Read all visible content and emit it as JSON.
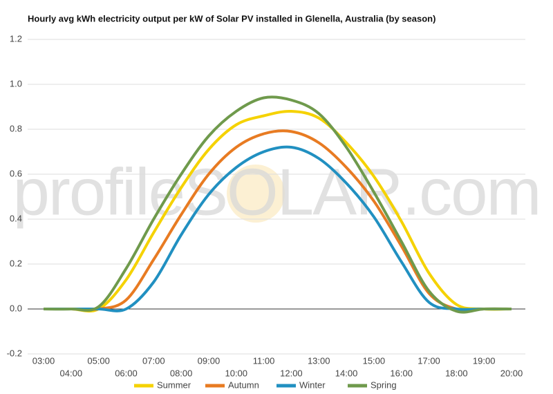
{
  "chart_data": {
    "type": "line",
    "title": "Hourly avg kWh electricity output per kW of Solar PV installed in Glenella, Australia (by season)",
    "watermark": "profileSOLAR.com",
    "categories": [
      "03:00",
      "04:00",
      "05:00",
      "06:00",
      "07:00",
      "08:00",
      "09:00",
      "10:00",
      "11:00",
      "12:00",
      "13:00",
      "14:00",
      "15:00",
      "16:00",
      "17:00",
      "18:00",
      "19:00",
      "20:00"
    ],
    "series": [
      {
        "name": "Summer",
        "color": "#f5d200",
        "values": [
          0,
          0,
          0,
          0.13,
          0.34,
          0.54,
          0.71,
          0.82,
          0.86,
          0.88,
          0.85,
          0.74,
          0.59,
          0.39,
          0.16,
          0.02,
          0,
          0
        ]
      },
      {
        "name": "Autumn",
        "color": "#e87b22",
        "values": [
          0,
          0,
          0,
          0.04,
          0.22,
          0.42,
          0.6,
          0.72,
          0.78,
          0.79,
          0.74,
          0.63,
          0.48,
          0.28,
          0.07,
          0,
          0,
          0
        ]
      },
      {
        "name": "Winter",
        "color": "#2190c1",
        "values": [
          0,
          0,
          0,
          0,
          0.12,
          0.33,
          0.51,
          0.63,
          0.7,
          0.72,
          0.67,
          0.56,
          0.41,
          0.21,
          0.03,
          0,
          0,
          0
        ]
      },
      {
        "name": "Spring",
        "color": "#6f9a4c",
        "values": [
          0,
          0,
          0.01,
          0.18,
          0.4,
          0.6,
          0.77,
          0.88,
          0.94,
          0.93,
          0.87,
          0.72,
          0.52,
          0.3,
          0.08,
          -0.01,
          0,
          0
        ]
      }
    ],
    "ylim": [
      -0.2,
      1.2
    ],
    "yticks": [
      {
        "value": -0.2,
        "label": "-0.2"
      },
      {
        "value": 0,
        "label": "0.0"
      },
      {
        "value": 0.2,
        "label": "0.2"
      },
      {
        "value": 0.4,
        "label": "0.4"
      },
      {
        "value": 0.6,
        "label": "0.6"
      },
      {
        "value": 0.8,
        "label": "0.8"
      },
      {
        "value": 1,
        "label": "1.0"
      },
      {
        "value": 1.2,
        "label": "1.2"
      }
    ],
    "grid": true,
    "legend": "bottom"
  }
}
